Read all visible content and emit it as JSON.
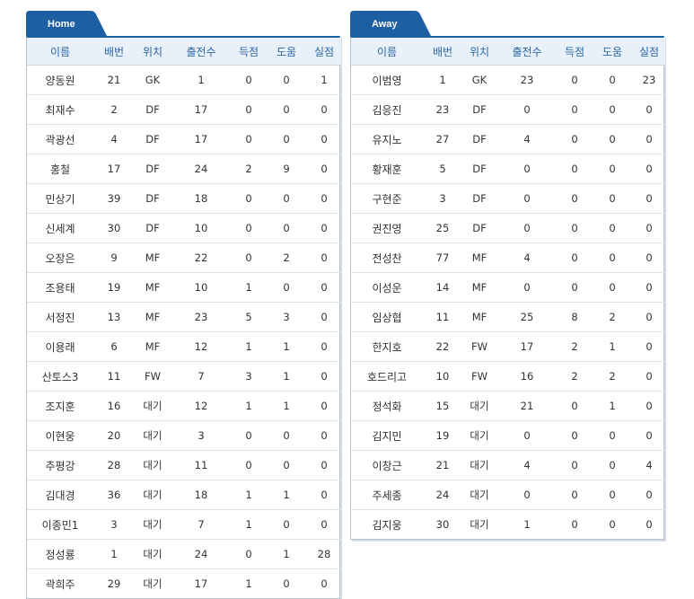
{
  "accent_color": "#1d5fa3",
  "header_bg": "#e8f1fa",
  "columns": [
    "이름",
    "배번",
    "위치",
    "출전수",
    "득점",
    "도움",
    "실점"
  ],
  "home": {
    "tab_label": "Home",
    "rows": [
      [
        "양동원",
        "21",
        "GK",
        "1",
        "0",
        "0",
        "1"
      ],
      [
        "최재수",
        "2",
        "DF",
        "17",
        "0",
        "0",
        "0"
      ],
      [
        "곽광선",
        "4",
        "DF",
        "17",
        "0",
        "0",
        "0"
      ],
      [
        "홍철",
        "17",
        "DF",
        "24",
        "2",
        "9",
        "0"
      ],
      [
        "민상기",
        "39",
        "DF",
        "18",
        "0",
        "0",
        "0"
      ],
      [
        "신세계",
        "30",
        "DF",
        "10",
        "0",
        "0",
        "0"
      ],
      [
        "오장은",
        "9",
        "MF",
        "22",
        "0",
        "2",
        "0"
      ],
      [
        "조용태",
        "19",
        "MF",
        "10",
        "1",
        "0",
        "0"
      ],
      [
        "서정진",
        "13",
        "MF",
        "23",
        "5",
        "3",
        "0"
      ],
      [
        "이용래",
        "6",
        "MF",
        "12",
        "1",
        "1",
        "0"
      ],
      [
        "산토스3",
        "11",
        "FW",
        "7",
        "3",
        "1",
        "0"
      ],
      [
        "조지훈",
        "16",
        "대기",
        "12",
        "1",
        "1",
        "0"
      ],
      [
        "이현웅",
        "20",
        "대기",
        "3",
        "0",
        "0",
        "0"
      ],
      [
        "추평강",
        "28",
        "대기",
        "11",
        "0",
        "0",
        "0"
      ],
      [
        "김대경",
        "36",
        "대기",
        "18",
        "1",
        "1",
        "0"
      ],
      [
        "이종민1",
        "3",
        "대기",
        "7",
        "1",
        "0",
        "0"
      ],
      [
        "정성룡",
        "1",
        "대기",
        "24",
        "0",
        "1",
        "28"
      ],
      [
        "곽희주",
        "29",
        "대기",
        "17",
        "1",
        "0",
        "0"
      ]
    ]
  },
  "away": {
    "tab_label": "Away",
    "rows": [
      [
        "이범영",
        "1",
        "GK",
        "23",
        "0",
        "0",
        "23"
      ],
      [
        "김응진",
        "23",
        "DF",
        "0",
        "0",
        "0",
        "0"
      ],
      [
        "유지노",
        "27",
        "DF",
        "4",
        "0",
        "0",
        "0"
      ],
      [
        "황재훈",
        "5",
        "DF",
        "0",
        "0",
        "0",
        "0"
      ],
      [
        "구현준",
        "3",
        "DF",
        "0",
        "0",
        "0",
        "0"
      ],
      [
        "권진영",
        "25",
        "DF",
        "0",
        "0",
        "0",
        "0"
      ],
      [
        "전성찬",
        "77",
        "MF",
        "4",
        "0",
        "0",
        "0"
      ],
      [
        "이성운",
        "14",
        "MF",
        "0",
        "0",
        "0",
        "0"
      ],
      [
        "임상협",
        "11",
        "MF",
        "25",
        "8",
        "2",
        "0"
      ],
      [
        "한지호",
        "22",
        "FW",
        "17",
        "2",
        "1",
        "0"
      ],
      [
        "호드리고",
        "10",
        "FW",
        "16",
        "2",
        "2",
        "0"
      ],
      [
        "정석화",
        "15",
        "대기",
        "21",
        "0",
        "1",
        "0"
      ],
      [
        "김지민",
        "19",
        "대기",
        "0",
        "0",
        "0",
        "0"
      ],
      [
        "이창근",
        "21",
        "대기",
        "4",
        "0",
        "0",
        "4"
      ],
      [
        "주세종",
        "24",
        "대기",
        "0",
        "0",
        "0",
        "0"
      ],
      [
        "김지웅",
        "30",
        "대기",
        "1",
        "0",
        "0",
        "0"
      ]
    ]
  }
}
